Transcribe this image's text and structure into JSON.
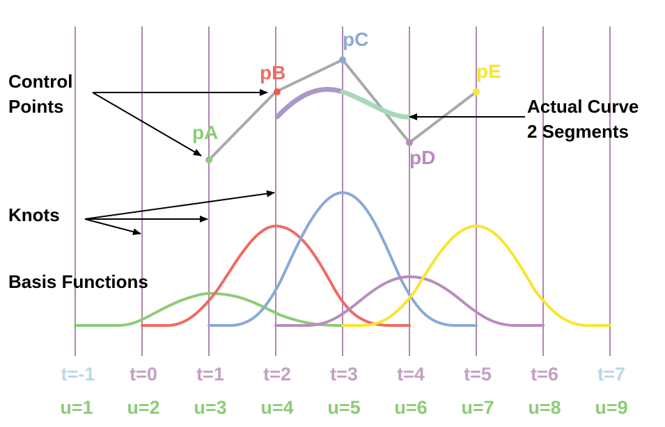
{
  "colors": {
    "grid": "#b085b0",
    "green": "#8ccc78",
    "red": "#ee6b64",
    "blue": "#8aa9d8",
    "purple": "#b98bbd",
    "yellow": "#f7e531",
    "polygon": "#a9a9a9",
    "t_light": "#b8d8e8",
    "t_purple": "#c3a0c3",
    "curve_purple": "#a898cc",
    "curve_green": "#a8d8b8",
    "arrow": "#000000"
  },
  "annotations": {
    "control_points_line1": "Control",
    "control_points_line2": "Points",
    "knots": "Knots",
    "basis_functions": "Basis Functions",
    "actual_curve_line1": "Actual Curve",
    "actual_curve_line2": "2 Segments"
  },
  "control_points": [
    {
      "label": "pA",
      "color": "#8ccc78"
    },
    {
      "label": "pB",
      "color": "#ee6b64"
    },
    {
      "label": "pC",
      "color": "#8aa9d8"
    },
    {
      "label": "pD",
      "color": "#b98bbd"
    },
    {
      "label": "pE",
      "color": "#f7e531"
    }
  ],
  "t_labels": [
    "t=-1",
    "t=0",
    "t=1",
    "t=2",
    "t=3",
    "t=4",
    "t=5",
    "t=6",
    "t=7"
  ],
  "u_labels": [
    "u=1",
    "u=2",
    "u=3",
    "u=4",
    "u=5",
    "u=6",
    "u=7",
    "u=8",
    "u=9"
  ]
}
